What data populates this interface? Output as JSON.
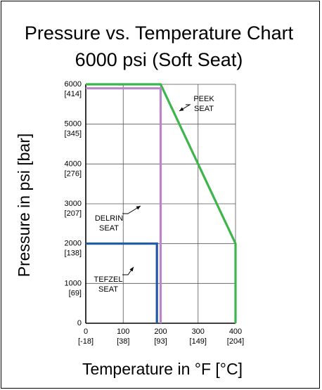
{
  "chart_data": {
    "type": "line",
    "title": "Pressure vs. Temperature Chart",
    "subtitle": "6000 psi (Soft Seat)",
    "xlabel": "Temperature in °F [°C]",
    "ylabel": "Pressure in psi [bar]",
    "xlim": [
      0,
      400
    ],
    "ylim": [
      0,
      6000
    ],
    "grid": true,
    "x_ticks": [
      {
        "value": 0,
        "label": "0",
        "sublabel": "[-18]"
      },
      {
        "value": 100,
        "label": "100",
        "sublabel": "[38]"
      },
      {
        "value": 200,
        "label": "200",
        "sublabel": "[93]"
      },
      {
        "value": 300,
        "label": "300",
        "sublabel": "[149]"
      },
      {
        "value": 400,
        "label": "400",
        "sublabel": "[204]"
      }
    ],
    "y_ticks": [
      {
        "value": 0,
        "label": "0",
        "sublabel": ""
      },
      {
        "value": 1000,
        "label": "1000",
        "sublabel": "[69]"
      },
      {
        "value": 2000,
        "label": "2000",
        "sublabel": "[138]"
      },
      {
        "value": 3000,
        "label": "3000",
        "sublabel": "[207]"
      },
      {
        "value": 4000,
        "label": "4000",
        "sublabel": "[276]"
      },
      {
        "value": 5000,
        "label": "5000",
        "sublabel": "[345]"
      },
      {
        "value": 6000,
        "label": "6000",
        "sublabel": "[414]"
      }
    ],
    "series": [
      {
        "name_lines": [
          "PEEK",
          "SEAT"
        ],
        "color": "#3cb54a",
        "x": [
          0,
          200,
          400,
          400
        ],
        "y": [
          6000,
          6000,
          2000,
          0
        ]
      },
      {
        "name_lines": [
          "DELRIN",
          "SEAT"
        ],
        "color": "#b987c8",
        "x": [
          0,
          200,
          200
        ],
        "y": [
          5900,
          5900,
          0
        ]
      },
      {
        "name_lines": [
          "TEFZEL",
          "SEAT"
        ],
        "color": "#1f5aa6",
        "x": [
          0,
          190,
          190
        ],
        "y": [
          2000,
          2000,
          0
        ]
      }
    ]
  }
}
